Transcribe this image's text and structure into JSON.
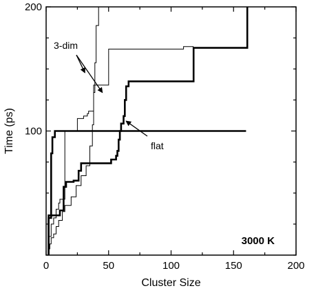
{
  "chart_data": {
    "type": "line",
    "title": "",
    "xlabel": "Cluster Size",
    "ylabel": "Time (ps)",
    "xlim": [
      0,
      200
    ],
    "ylim": [
      0,
      200
    ],
    "x_tick_labels": [
      "0",
      "50",
      "100",
      "150",
      "200"
    ],
    "x_tick_values": [
      0,
      50,
      100,
      150,
      200
    ],
    "y_tick_labels": [
      "100",
      "200"
    ],
    "y_tick_values": [
      100,
      200
    ],
    "grid": false,
    "temperature_label": "3000 K",
    "annotations": [
      {
        "text": "3-dim",
        "arrow_targets": [
          [
            31,
            147
          ],
          [
            45,
            131
          ]
        ]
      },
      {
        "text": "flat",
        "arrow_targets": [
          [
            64,
            108
          ]
        ]
      }
    ],
    "series": [
      {
        "weight": "thin",
        "x": [
          2,
          2,
          3,
          3,
          4,
          4,
          6,
          6,
          8,
          8,
          10,
          10,
          13,
          13,
          15,
          15,
          20,
          20,
          24,
          24,
          28,
          28,
          32,
          32,
          35,
          35,
          37,
          37,
          38,
          38,
          39,
          39,
          40,
          40,
          42,
          42
        ],
        "y": [
          0,
          5,
          5,
          9,
          9,
          14,
          14,
          17,
          17,
          23,
          23,
          28,
          28,
          35,
          35,
          40,
          40,
          47,
          47,
          56,
          56,
          64,
          64,
          72,
          72,
          88,
          88,
          105,
          105,
          131,
          131,
          155,
          155,
          185,
          185,
          200
        ]
      },
      {
        "weight": "thin",
        "x": [
          2,
          2,
          4,
          4,
          6,
          6,
          8,
          8,
          10,
          10,
          11,
          11,
          15,
          15,
          25,
          25,
          30,
          30,
          33,
          33,
          34,
          34,
          38,
          38,
          50,
          50,
          110,
          110,
          118
        ],
        "y": [
          0,
          15,
          15,
          25,
          25,
          30,
          30,
          37,
          37,
          42,
          42,
          45,
          45,
          100,
          100,
          110,
          110,
          112,
          112,
          114,
          114,
          116,
          116,
          137,
          137,
          166,
          166,
          168,
          168
        ]
      },
      {
        "weight": "thick",
        "x": [
          2,
          2,
          4,
          4,
          5,
          5,
          7,
          7,
          25,
          25,
          57,
          57,
          118,
          118,
          155,
          155,
          160,
          160
        ],
        "y": [
          0,
          30,
          30,
          82,
          82,
          95,
          95,
          100,
          100,
          100,
          100,
          100,
          100,
          100,
          100,
          100,
          100,
          100
        ]
      },
      {
        "weight": "thick",
        "x": [
          2,
          2,
          11,
          11,
          14,
          14,
          16,
          16,
          22,
          22,
          26,
          26,
          28,
          28,
          40,
          40,
          52,
          52,
          56,
          56,
          57,
          57,
          58,
          58,
          59,
          59,
          60,
          60,
          62,
          62,
          63,
          63,
          64,
          64,
          66,
          66,
          118,
          118,
          161,
          161
        ],
        "y": [
          0,
          32,
          32,
          36,
          36,
          55,
          55,
          59,
          59,
          60,
          60,
          68,
          68,
          74,
          74,
          74,
          74,
          77,
          77,
          80,
          80,
          84,
          84,
          93,
          93,
          100,
          100,
          106,
          106,
          112,
          112,
          125,
          125,
          136,
          136,
          140,
          140,
          167,
          167,
          200
        ]
      }
    ]
  }
}
